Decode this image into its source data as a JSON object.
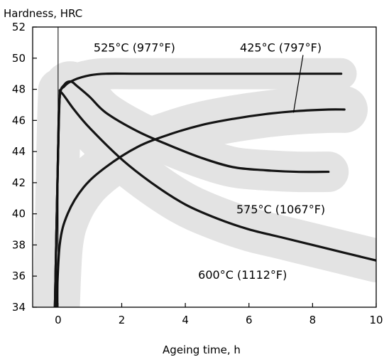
{
  "chart_data": {
    "type": "line",
    "title": "",
    "ylabel": "Hardness, HRC",
    "xlabel": "Ageing time, h",
    "xlim": [
      -0.8,
      10
    ],
    "ylim": [
      34,
      52
    ],
    "x_ticks": [
      0,
      2,
      4,
      6,
      8,
      10
    ],
    "y_ticks": [
      34,
      36,
      38,
      40,
      42,
      44,
      46,
      48,
      50,
      52
    ],
    "grid": false,
    "legend": "none",
    "colors": {
      "line": "#141414",
      "band": "#e3e3e3",
      "frame": "#000000"
    },
    "series": [
      {
        "label": "425°C (797°F)",
        "x": [
          -0.05,
          0.05,
          0.3,
          0.8,
          1.5,
          2.5,
          3.5,
          4.5,
          5.5,
          6.5,
          7.5,
          8.5,
          9.0
        ],
        "y": [
          34,
          38,
          40,
          41.7,
          43,
          44.3,
          45.1,
          45.7,
          46.1,
          46.4,
          46.6,
          46.7,
          46.7
        ],
        "band_half_width": 1.5
      },
      {
        "label": "525°C (977°F)",
        "x": [
          -0.1,
          0.0,
          0.05,
          0.2,
          0.5,
          1.0,
          1.5,
          2.5,
          4.0,
          6.0,
          8.0,
          8.9
        ],
        "y": [
          34,
          44,
          47.5,
          48.2,
          48.6,
          48.9,
          49.0,
          49.0,
          49.0,
          49.0,
          49.0,
          49.0
        ],
        "band_half_width": 1.0
      },
      {
        "label": "575°C (1067°F)",
        "x": [
          -0.1,
          0.0,
          0.05,
          0.2,
          0.4,
          0.6,
          1.0,
          1.5,
          2.5,
          3.5,
          4.5,
          5.5,
          6.5,
          7.5,
          8.5
        ],
        "y": [
          34,
          44,
          47.5,
          48.3,
          48.5,
          48.2,
          47.5,
          46.5,
          45.3,
          44.4,
          43.6,
          43.0,
          42.8,
          42.7,
          42.7
        ],
        "band_half_width": 1.3
      },
      {
        "label": "600°C (1112°F)",
        "x": [
          -0.1,
          0.0,
          0.05,
          0.1,
          0.5,
          1.0,
          2.0,
          3.0,
          4.0,
          5.0,
          6.0,
          7.0,
          8.0,
          9.0,
          10.0
        ],
        "y": [
          34,
          44,
          47.5,
          47.8,
          46.7,
          45.5,
          43.5,
          41.9,
          40.6,
          39.7,
          39.0,
          38.5,
          38.0,
          37.5,
          37.0
        ],
        "band_half_width": 1.4
      }
    ],
    "annotations": [
      {
        "text": "525°C (977°F)",
        "x": 2.4,
        "y": 50.7
      },
      {
        "text": "425°C (797°F)",
        "x": 7.0,
        "y": 50.7
      },
      {
        "text": "575°C (1067°F)",
        "x": 7.0,
        "y": 40.3
      },
      {
        "text": "600°C (1112°F)",
        "x": 5.8,
        "y": 36.1
      }
    ],
    "leader": {
      "from": [
        7.7,
        50.2
      ],
      "to": [
        7.4,
        46.5
      ]
    }
  }
}
